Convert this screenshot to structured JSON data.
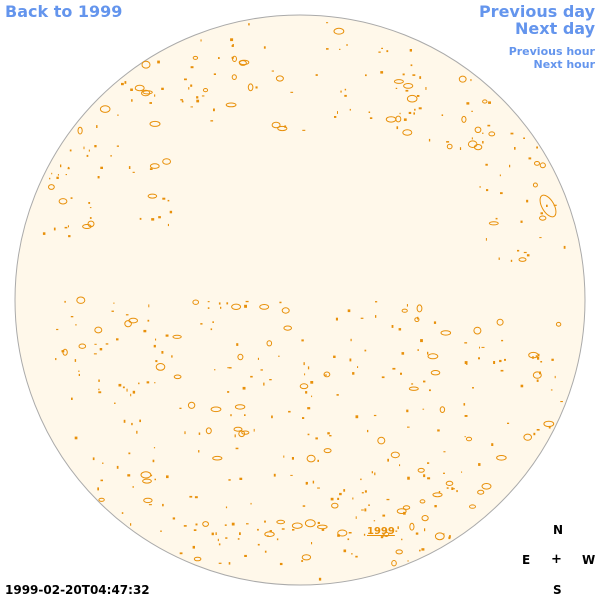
{
  "nav": {
    "back_label": "Back to 1999",
    "prev_day_label": "Previous day",
    "next_day_label": "Next day",
    "prev_hour_label": "Previous hour",
    "next_hour_label": "Next hour"
  },
  "compass": {
    "north": "N",
    "east": "E",
    "center": "+",
    "west": "W",
    "south": "S"
  },
  "timestamp": "1999-02-20T04:47:32",
  "year_label": "1999",
  "colors": {
    "link": "#6495ed",
    "disk_fill": "#fff8ea",
    "disk_border": "#aaaaaa",
    "contour": "#e8900a"
  }
}
